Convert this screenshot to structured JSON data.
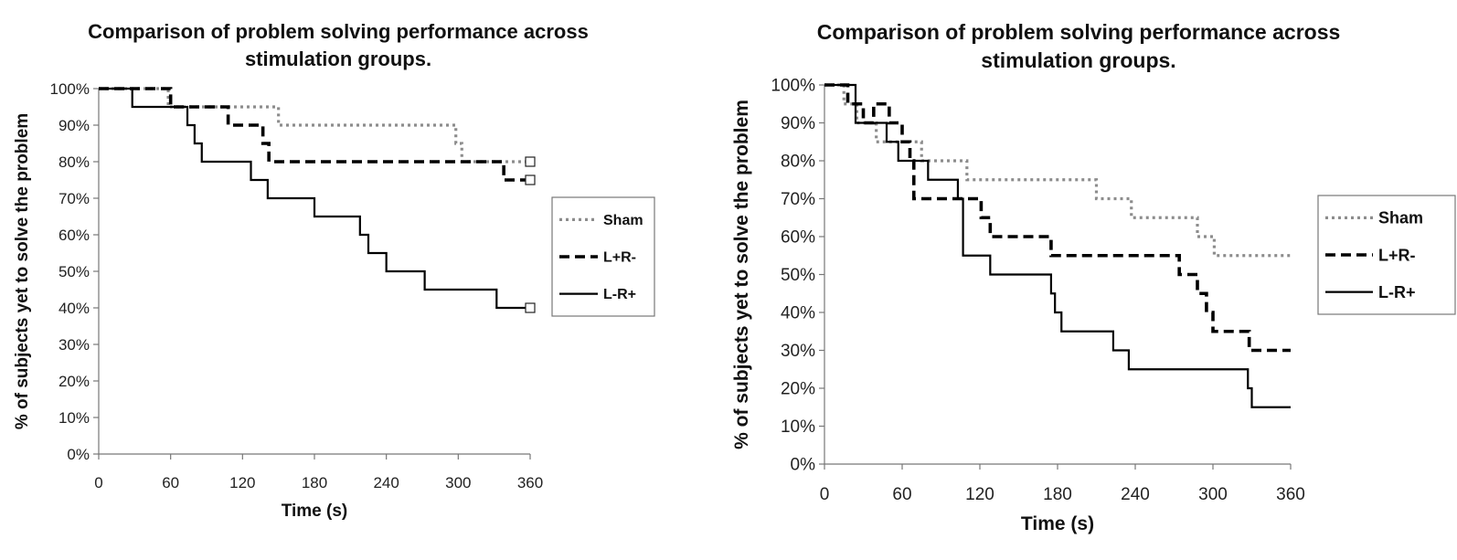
{
  "chart_data": [
    {
      "type": "line",
      "step": true,
      "title": "Comparison of problem solving performance across stimulation groups.",
      "xlabel": "Time (s)",
      "ylabel": "% of subjects yet to solve the problem",
      "xlim": [
        0,
        360
      ],
      "ylim": [
        0,
        100
      ],
      "x_ticks": [
        "0",
        "60",
        "120",
        "180",
        "240",
        "300",
        "360"
      ],
      "y_ticks": [
        "0%",
        "10%",
        "20%",
        "30%",
        "40%",
        "50%",
        "60%",
        "70%",
        "80%",
        "90%",
        "100%"
      ],
      "grid": false,
      "legend_position": "right",
      "series": [
        {
          "name": "Sham",
          "style": "dotted",
          "color": "#8c8c8c",
          "x": [
            0,
            58,
            150,
            298,
            303,
            360
          ],
          "y": [
            100,
            95,
            90,
            85,
            80,
            80
          ],
          "censored_end": true
        },
        {
          "name": "L+R-",
          "style": "dashed",
          "color": "#000000",
          "x": [
            0,
            60,
            108,
            137,
            142,
            338,
            360
          ],
          "y": [
            100,
            95,
            90,
            85,
            80,
            75,
            75
          ],
          "censored_end": true
        },
        {
          "name": "L-R+",
          "style": "solid",
          "color": "#000000",
          "x": [
            0,
            28,
            74,
            80,
            86,
            127,
            141,
            180,
            218,
            225,
            240,
            272,
            332,
            360
          ],
          "y": [
            100,
            95,
            90,
            85,
            80,
            75,
            70,
            65,
            60,
            55,
            50,
            45,
            40,
            40
          ],
          "censored_end": true
        }
      ]
    },
    {
      "type": "line",
      "step": true,
      "title": "Comparison of problem solving performance across stimulation groups.",
      "xlabel": "Time (s)",
      "ylabel": "% of subjects yet to solve the problem",
      "xlim": [
        0,
        360
      ],
      "ylim": [
        0,
        100
      ],
      "x_ticks": [
        "0",
        "60",
        "120",
        "180",
        "240",
        "300",
        "360"
      ],
      "y_ticks": [
        "0%",
        "10%",
        "20%",
        "30%",
        "40%",
        "50%",
        "60%",
        "70%",
        "80%",
        "90%",
        "100%"
      ],
      "grid": false,
      "legend_position": "right",
      "series": [
        {
          "name": "Sham",
          "style": "dotted",
          "color": "#8c8c8c",
          "x": [
            0,
            15,
            25,
            40,
            48,
            60,
            75,
            88,
            110,
            210,
            218,
            237,
            288,
            294,
            301,
            360
          ],
          "y": [
            100,
            95,
            90,
            85,
            85,
            85,
            80,
            80,
            75,
            70,
            70,
            65,
            60,
            60,
            55,
            55
          ],
          "censored_end": false
        },
        {
          "name": "L+R-",
          "style": "dashed",
          "color": "#000000",
          "x": [
            0,
            18,
            30,
            38,
            50,
            60,
            66,
            69,
            105,
            121,
            128,
            175,
            274,
            288,
            295,
            300,
            328,
            360
          ],
          "y": [
            100,
            95,
            90,
            95,
            90,
            85,
            80,
            70,
            70,
            65,
            60,
            55,
            50,
            45,
            40,
            35,
            30,
            30
          ],
          "censored_end": false
        },
        {
          "name": "L-R+",
          "style": "solid",
          "color": "#000000",
          "x": [
            0,
            24,
            48,
            57,
            76,
            80,
            103,
            107,
            128,
            175,
            178,
            183,
            223,
            235,
            327,
            330,
            360
          ],
          "y": [
            100,
            90,
            85,
            80,
            80,
            75,
            70,
            55,
            50,
            45,
            40,
            35,
            30,
            25,
            20,
            15,
            15
          ],
          "censored_end": false
        }
      ]
    }
  ]
}
